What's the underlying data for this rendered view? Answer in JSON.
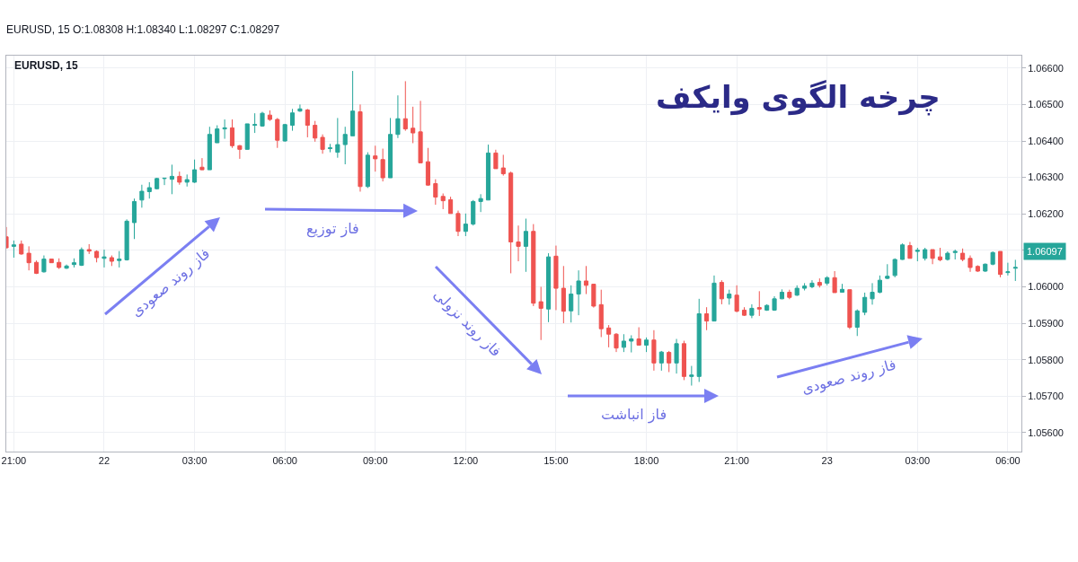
{
  "chart_data": {
    "type": "candlestick",
    "title": "چرخه الگوی وایکف",
    "subtitle": "EURUSD, 15",
    "annotations": [
      "EURUSD, 15 O:1.08308 H:1.08340 L:1.08297 C:1.08297",
      "1.06097",
      "فاز روند صعودی",
      "فاز توزیع",
      "فاز روند نزولی",
      "فاز انباشت",
      "فاز روند صعودی"
    ],
    "categories": [
      null,
      "21:00",
      null,
      null,
      null,
      null,
      null,
      null,
      null,
      null,
      null,
      null,
      null,
      "22",
      null,
      null,
      null,
      null,
      null,
      null,
      null,
      null,
      null,
      null,
      null,
      "03:00",
      null,
      null,
      null,
      null,
      null,
      null,
      null,
      null,
      null,
      null,
      null,
      "06:00",
      null,
      null,
      null,
      null,
      null,
      null,
      null,
      null,
      null,
      null,
      null,
      "09:00",
      null,
      null,
      null,
      null,
      null,
      null,
      null,
      null,
      null,
      null,
      null,
      "12:00",
      null,
      null,
      null,
      null,
      null,
      null,
      null,
      null,
      null,
      null,
      null,
      "15:00",
      null,
      null,
      null,
      null,
      null,
      null,
      null,
      null,
      null,
      null,
      null,
      "18:00",
      null,
      null,
      null,
      null,
      null,
      null,
      null,
      null,
      null,
      null,
      null,
      "21:00",
      null,
      null,
      null,
      null,
      null,
      null,
      null,
      null,
      null,
      null,
      null,
      "23",
      null,
      null,
      null,
      null,
      null,
      null,
      null,
      null,
      null,
      null,
      null,
      "03:00",
      null,
      null,
      null,
      null,
      null,
      null,
      null,
      null,
      null,
      null,
      null,
      "06:00",
      null
    ],
    "ohlc": [
      [
        1.06137,
        1.06164,
        1.06105,
        1.06107
      ],
      [
        1.06111,
        1.06127,
        1.0608,
        1.06115
      ],
      [
        1.06117,
        1.06127,
        1.06088,
        1.0609
      ],
      [
        1.06092,
        1.06111,
        1.06045,
        1.06066
      ],
      [
        1.06067,
        1.06072,
        1.06035,
        1.06037
      ],
      [
        1.06041,
        1.06086,
        1.06039,
        1.06076
      ],
      [
        1.06076,
        1.06076,
        1.06066,
        1.06066
      ],
      [
        1.06067,
        1.06078,
        1.06049,
        1.06053
      ],
      [
        1.06051,
        1.06061,
        1.06049,
        1.06057
      ],
      [
        1.06061,
        1.06078,
        1.06053,
        1.06066
      ],
      [
        1.06059,
        1.06108,
        1.06057,
        1.06102
      ],
      [
        1.06102,
        1.06117,
        1.0609,
        1.06098
      ],
      [
        1.06097,
        1.061,
        1.06067,
        1.0608
      ],
      [
        1.06078,
        1.06102,
        1.06053,
        1.06082
      ],
      [
        1.0608,
        1.06086,
        1.06057,
        1.0607
      ],
      [
        1.06072,
        1.06098,
        1.06053,
        1.06076
      ],
      [
        1.06074,
        1.06185,
        1.06072,
        1.0618
      ],
      [
        1.06176,
        1.06242,
        1.06131,
        1.06234
      ],
      [
        1.06238,
        1.0628,
        1.06217,
        1.06262
      ],
      [
        1.06261,
        1.06287,
        1.06242,
        1.06272
      ],
      [
        1.06269,
        1.06299,
        1.06267,
        1.06297
      ],
      [
        1.06297,
        1.06299,
        1.06279,
        1.06298
      ],
      [
        1.06295,
        1.06335,
        1.06254,
        1.06303
      ],
      [
        1.06303,
        1.06316,
        1.0628,
        1.06287
      ],
      [
        1.06287,
        1.06308,
        1.06275,
        1.06294
      ],
      [
        1.06287,
        1.06349,
        1.06285,
        1.06321
      ],
      [
        1.06328,
        1.06353,
        1.0632,
        1.06321
      ],
      [
        1.06321,
        1.06439,
        1.06321,
        1.06418
      ],
      [
        1.06395,
        1.06443,
        1.06395,
        1.06433
      ],
      [
        1.06433,
        1.06459,
        1.06406,
        1.06436
      ],
      [
        1.06436,
        1.06459,
        1.06381,
        1.06387
      ],
      [
        1.06387,
        1.06389,
        1.06351,
        1.06377
      ],
      [
        1.06377,
        1.06447,
        1.06377,
        1.06447
      ],
      [
        1.06443,
        1.06476,
        1.06422,
        1.06445
      ],
      [
        1.06441,
        1.0648,
        1.06439,
        1.06476
      ],
      [
        1.06471,
        1.06484,
        1.06455,
        1.06459
      ],
      [
        1.06459,
        1.06463,
        1.06381,
        1.06402
      ],
      [
        1.064,
        1.06447,
        1.06398,
        1.06445
      ],
      [
        1.06443,
        1.06488,
        1.06428,
        1.06477
      ],
      [
        1.06482,
        1.065,
        1.0648,
        1.06488
      ],
      [
        1.06485,
        1.06488,
        1.0641,
        1.06443
      ],
      [
        1.06443,
        1.06455,
        1.06398,
        1.06408
      ],
      [
        1.0641,
        1.06418,
        1.06365,
        1.06377
      ],
      [
        1.06379,
        1.06392,
        1.06369,
        1.06381
      ],
      [
        1.06369,
        1.06463,
        1.06354,
        1.0639
      ],
      [
        1.0639,
        1.06439,
        1.06336,
        1.06418
      ],
      [
        1.06414,
        1.06592,
        1.06414,
        1.06482
      ],
      [
        1.0648,
        1.065,
        1.06261,
        1.06275
      ],
      [
        1.06275,
        1.06369,
        1.06271,
        1.06361
      ],
      [
        1.06359,
        1.06387,
        1.06316,
        1.06351
      ],
      [
        1.06349,
        1.06379,
        1.06289,
        1.06299
      ],
      [
        1.06299,
        1.06463,
        1.06299,
        1.06418
      ],
      [
        1.06418,
        1.06525,
        1.06408,
        1.06461
      ],
      [
        1.06461,
        1.06564,
        1.06428,
        1.06433
      ],
      [
        1.06435,
        1.06494,
        1.06394,
        1.06422
      ],
      [
        1.06425,
        1.0651,
        1.0634,
        1.0634
      ],
      [
        1.06343,
        1.06381,
        1.06277,
        1.06279
      ],
      [
        1.06283,
        1.06295,
        1.06225,
        1.06246
      ],
      [
        1.06248,
        1.06256,
        1.06213,
        1.06236
      ],
      [
        1.06239,
        1.06247,
        1.06201,
        1.06201
      ],
      [
        1.06201,
        1.06209,
        1.06139,
        1.06152
      ],
      [
        1.06152,
        1.06201,
        1.06139,
        1.06172
      ],
      [
        1.06172,
        1.06238,
        1.06168,
        1.06234
      ],
      [
        1.06234,
        1.06254,
        1.06205,
        1.06242
      ],
      [
        1.06238,
        1.0639,
        1.06238,
        1.06367
      ],
      [
        1.06367,
        1.06376,
        1.06324,
        1.06324
      ],
      [
        1.06326,
        1.06362,
        1.06305,
        1.0631
      ],
      [
        1.06312,
        1.06316,
        1.06037,
        1.06123
      ],
      [
        1.06123,
        1.06168,
        1.0607,
        1.06111
      ],
      [
        1.06111,
        1.06187,
        1.06041,
        1.06152
      ],
      [
        1.06152,
        1.06172,
        1.05947,
        1.05955
      ],
      [
        1.05959,
        1.06,
        1.05854,
        1.05941
      ],
      [
        1.05939,
        1.06092,
        1.05903,
        1.06082
      ],
      [
        1.06084,
        1.06113,
        1.05936,
        1.05996
      ],
      [
        1.05996,
        1.06057,
        1.059,
        1.05933
      ],
      [
        1.05934,
        1.06004,
        1.05902,
        1.0598
      ],
      [
        1.0598,
        1.06045,
        1.05922,
        1.06016
      ],
      [
        1.06016,
        1.06057,
        1.0598,
        1.06004
      ],
      [
        1.06007,
        1.06008,
        1.05943,
        1.05947
      ],
      [
        1.05951,
        1.05992,
        1.05862,
        1.05885
      ],
      [
        1.05887,
        1.05895,
        1.05834,
        1.0587
      ],
      [
        1.0587,
        1.05873,
        1.05821,
        1.05832
      ],
      [
        1.05834,
        1.0587,
        1.05821,
        1.05851
      ],
      [
        1.05851,
        1.05867,
        1.0582,
        1.05857
      ],
      [
        1.05857,
        1.05889,
        1.0584,
        1.0584
      ],
      [
        1.0584,
        1.05861,
        1.05821,
        1.05854
      ],
      [
        1.05854,
        1.05881,
        1.0577,
        1.05791
      ],
      [
        1.05791,
        1.05824,
        1.0577,
        1.05821
      ],
      [
        1.0582,
        1.05824,
        1.05766,
        1.05791
      ],
      [
        1.05791,
        1.05857,
        1.05762,
        1.05844
      ],
      [
        1.05844,
        1.05852,
        1.05744,
        1.05754
      ],
      [
        1.05754,
        1.05783,
        1.05729,
        1.05758
      ],
      [
        1.05754,
        1.05967,
        1.05739,
        1.05926
      ],
      [
        1.05926,
        1.05944,
        1.05881,
        1.05906
      ],
      [
        1.05906,
        1.06031,
        1.05906,
        1.0601
      ],
      [
        1.06012,
        1.06018,
        1.05952,
        1.05967
      ],
      [
        1.05969,
        1.05992,
        1.05951,
        1.0598
      ],
      [
        1.05977,
        1.06004,
        1.0593,
        1.05933
      ],
      [
        1.05936,
        1.05944,
        1.0592,
        1.05922
      ],
      [
        1.05922,
        1.05952,
        1.05914,
        1.05941
      ],
      [
        1.05943,
        1.05988,
        1.0592,
        1.05939
      ],
      [
        1.05936,
        1.05952,
        1.05934,
        1.05949
      ],
      [
        1.05936,
        1.05974,
        1.05934,
        1.05967
      ],
      [
        1.05967,
        1.05993,
        1.05966,
        1.05985
      ],
      [
        1.05985,
        1.05992,
        1.05966,
        1.05971
      ],
      [
        1.05977,
        1.06004,
        1.05975,
        1.05996
      ],
      [
        1.05996,
        1.0601,
        1.0599,
        1.06002
      ],
      [
        1.06,
        1.06018,
        1.05996,
        1.0601
      ],
      [
        1.06012,
        1.06023,
        1.05998,
        1.06004
      ],
      [
        1.0601,
        1.06029,
        1.06004,
        1.06025
      ],
      [
        1.06025,
        1.06043,
        1.05984,
        1.05984
      ],
      [
        1.05985,
        1.06008,
        1.05985,
        1.05993
      ],
      [
        1.05992,
        1.05992,
        1.05884,
        1.05889
      ],
      [
        1.05889,
        1.05938,
        1.05865,
        1.05934
      ],
      [
        1.0593,
        1.05984,
        1.05922,
        1.05971
      ],
      [
        1.05967,
        1.0601,
        1.05951,
        1.05985
      ],
      [
        1.05985,
        1.06031,
        1.05982,
        1.06018
      ],
      [
        1.06023,
        1.06062,
        1.06021,
        1.06029
      ],
      [
        1.06031,
        1.06078,
        1.06026,
        1.06075
      ],
      [
        1.06075,
        1.06119,
        1.06074,
        1.06115
      ],
      [
        1.06113,
        1.06123,
        1.06078,
        1.06078
      ],
      [
        1.06097,
        1.06107,
        1.0607,
        1.061
      ],
      [
        1.06078,
        1.06107,
        1.06072,
        1.06102
      ],
      [
        1.06102,
        1.06102,
        1.06062,
        1.06078
      ],
      [
        1.06082,
        1.06107,
        1.0607,
        1.06074
      ],
      [
        1.06075,
        1.06097,
        1.06072,
        1.06092
      ],
      [
        1.06094,
        1.06102,
        1.06075,
        1.06097
      ],
      [
        1.06092,
        1.06105,
        1.0607,
        1.06075
      ],
      [
        1.06078,
        1.06086,
        1.06041,
        1.06053
      ],
      [
        1.06056,
        1.06059,
        1.06041,
        1.06043
      ],
      [
        1.06043,
        1.06064,
        1.06041,
        1.06062
      ],
      [
        1.06062,
        1.06097,
        1.06059,
        1.06094
      ],
      [
        1.06097,
        1.06097,
        1.06026,
        1.06034
      ],
      [
        1.06039,
        1.06066,
        1.06031,
        1.06041
      ],
      [
        1.06051,
        1.06074,
        1.06016,
        1.06053
      ]
    ],
    "ylim": [
      1.05548,
      1.06634
    ],
    "yticks": [
      {
        "value": 1.056,
        "label": "1.05600"
      },
      {
        "value": 1.057,
        "label": "1.05700"
      },
      {
        "value": 1.058,
        "label": "1.05800"
      },
      {
        "value": 1.059,
        "label": "1.05900"
      },
      {
        "value": 1.06,
        "label": "1.06000"
      },
      {
        "value": 1.061,
        "label": null
      },
      {
        "value": 1.062,
        "label": "1.06200"
      },
      {
        "value": 1.063,
        "label": "1.06300"
      },
      {
        "value": 1.064,
        "label": "1.06400"
      },
      {
        "value": 1.065,
        "label": "1.06500"
      },
      {
        "value": 1.066,
        "label": "1.06600"
      }
    ],
    "grid": true,
    "legend": false
  }
}
